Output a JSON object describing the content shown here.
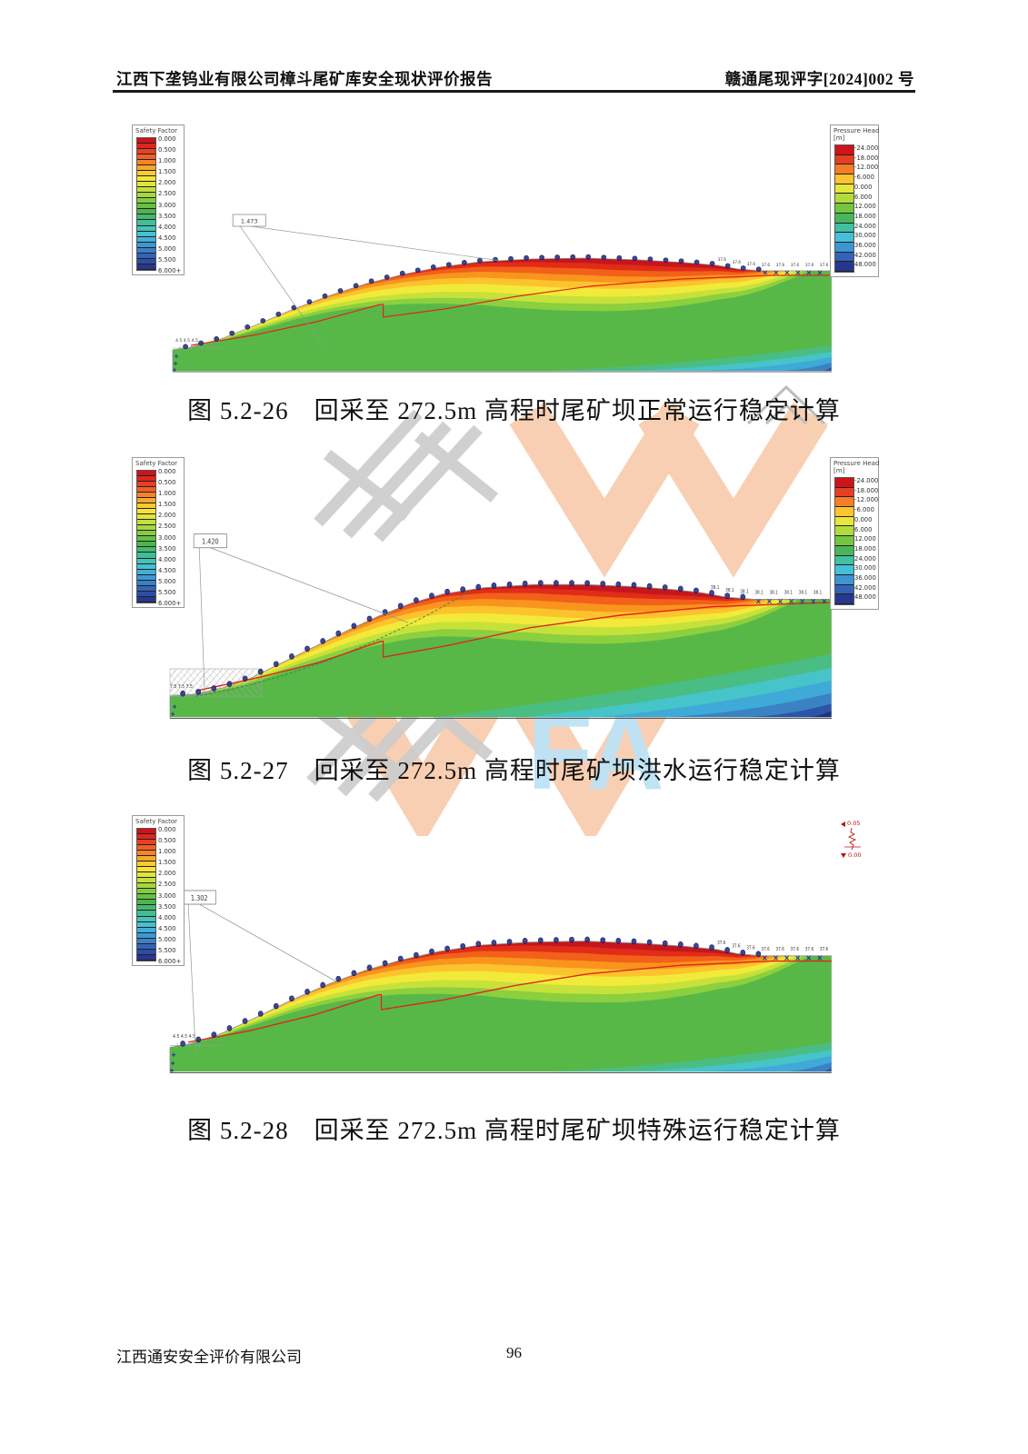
{
  "header": {
    "left": "江西下垄钨业有限公司樟斗尾矿库安全现状评价报告",
    "right": "赣通尾现评字[2024]002 号"
  },
  "legend_safety": {
    "title": "Safety Factor",
    "labels": [
      "0.000",
      "0.500",
      "1.000",
      "1.500",
      "2.000",
      "2.500",
      "3.000",
      "3.500",
      "4.000",
      "4.500",
      "5.000",
      "5.500",
      "6.000+"
    ]
  },
  "legend_pressure": {
    "title": "Pressure Head",
    "unit": "[m]",
    "labels": [
      "-24.000",
      "-18.000",
      "-12.000",
      "-6.000",
      "0.000",
      "6.000",
      "12.000",
      "18.000",
      "24.000",
      "30.000",
      "36.000",
      "42.000",
      "48.000"
    ]
  },
  "figures": [
    {
      "caption": "图 5.2-26　回采至 272.5m 高程时尾矿坝正常运行稳定计算",
      "factor": "1.473",
      "toe_text": "4.5 4.5  4.5",
      "beach_value": "37.6",
      "variant": "normal"
    },
    {
      "caption": "图 5.2-27　回采至 272.5m 高程时尾矿坝洪水运行稳定计算",
      "factor": "1.420",
      "toe_text": "7.5 7.5  7.5",
      "beach_value": "38.1",
      "variant": "flood"
    },
    {
      "caption": "图 5.2-28　回采至 272.5m 高程时尾矿坝特殊运行稳定计算",
      "factor": "1.302",
      "toe_text": "4.5 4.5  4.5",
      "beach_value": "37.6",
      "variant": "seismic",
      "seismic": {
        "h": "0.05",
        "v": "0.00"
      }
    }
  ],
  "watermark": {
    "letters": "FA"
  },
  "footer": {
    "company": "江西通安安全评价有限公司",
    "page": "96"
  },
  "colors": {
    "ramp": [
      "#cf1319",
      "#e33020",
      "#f05a24",
      "#f98e2a",
      "#fcc52f",
      "#f3e93a",
      "#cfe23c",
      "#a3d73f",
      "#74c63f",
      "#4db54a",
      "#3fba7e",
      "#44c3b4",
      "#44c0d8",
      "#3fa0d6",
      "#3a7cc6",
      "#2f57ae",
      "#27378f"
    ],
    "phreatic_red": "#e0251c",
    "marker_navy": "#2c3792",
    "base_green": "#58b847"
  }
}
